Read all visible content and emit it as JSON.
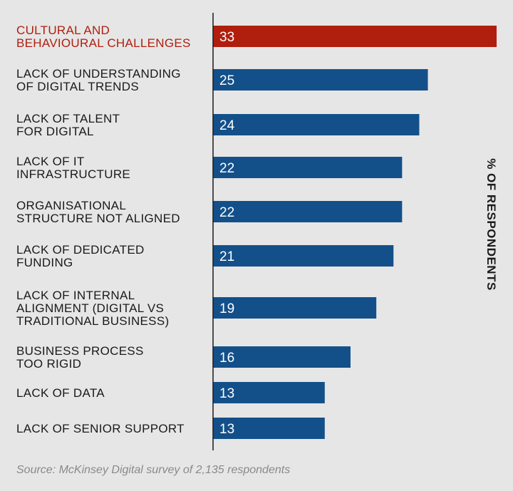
{
  "chart_data": {
    "type": "bar",
    "orientation": "horizontal",
    "categories": [
      [
        "CULTURAL AND",
        "BEHAVIOURAL CHALLENGES"
      ],
      [
        "LACK OF UNDERSTANDING",
        "OF DIGITAL TRENDS"
      ],
      [
        "LACK OF TALENT",
        "FOR DIGITAL"
      ],
      [
        "LACK OF IT",
        "INFRASTRUCTURE"
      ],
      [
        "ORGANISATIONAL",
        "STRUCTURE NOT ALIGNED"
      ],
      [
        "LACK OF DEDICATED",
        "FUNDING"
      ],
      [
        "LACK OF INTERNAL",
        "ALIGNMENT (DIGITAL VS",
        "TRADITIONAL BUSINESS)"
      ],
      [
        "BUSINESS PROCESS",
        "TOO RIGID"
      ],
      [
        "LACK OF DATA"
      ],
      [
        "LACK OF SENIOR SUPPORT"
      ]
    ],
    "values": [
      33,
      25,
      24,
      22,
      22,
      21,
      19,
      16,
      13,
      13
    ],
    "value_labels": [
      "33",
      "25",
      "24",
      "22",
      "22",
      "21",
      "19",
      "16",
      "13",
      "13"
    ],
    "xlim": [
      0,
      33
    ],
    "axis_title": "% OF RESPONDENTS",
    "grid": false,
    "legend": "none",
    "colors": {
      "highlight": "#b01e0e",
      "bar": "#13508a",
      "background": "#e6e6e6",
      "axis": "#1a1a1a"
    },
    "highlight_index": 0
  },
  "source": "Source: McKinsey Digital survey of 2,135 respondents"
}
